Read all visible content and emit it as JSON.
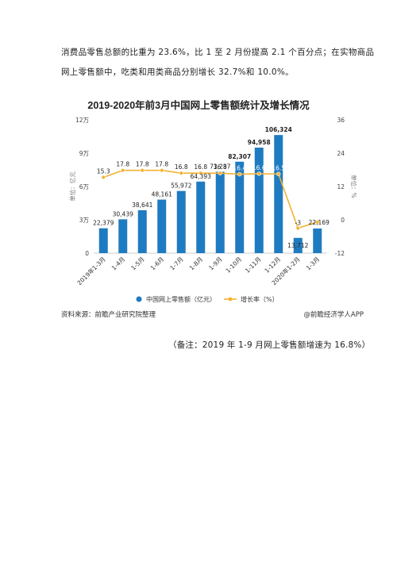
{
  "document": {
    "paragraph_line1": "消费品零售总额的比重为 23.6%，比 1 至 2 月份提高 2.1 个百分点；在实物商品",
    "paragraph_line2": "网上零售额中，吃类和用类商品分别增长 32.7%和 10.0%。",
    "source_left": "资料来源：前瞻产业研究院整理",
    "source_right": "@前瞻经济学人APP",
    "note": "（备注：2019 年 1-9 月网上零售额增速为 16.8%）"
  },
  "chart_data": {
    "type": "bar",
    "title": "2019-2020年前3月中国网上零售额统计及增长情况",
    "categories": [
      "2019年1-3月",
      "1-4月",
      "1-5月",
      "1-6月",
      "1-7月",
      "1-8月",
      "1-9月",
      "1-10月",
      "1-11月",
      "1-12月",
      "2020年1-2月",
      "1-3月"
    ],
    "bar_series": {
      "name": "中国网上零售额（亿元）",
      "color": "#1f7bc1",
      "values": [
        22379,
        30439,
        38641,
        48161,
        55972,
        64393,
        73237,
        82307,
        94958,
        106324,
        13712,
        22169
      ],
      "labels": [
        "22,379",
        "30,439",
        "38,641",
        "48,161",
        "55,972",
        "64,393",
        "73,237",
        "82,307",
        "94,958",
        "106,324",
        "13,712",
        "22,169"
      ]
    },
    "line_series": {
      "name": "增长率（%）",
      "color": "#f2b233",
      "values": [
        15.3,
        17.8,
        17.8,
        17.8,
        16.8,
        16.8,
        16.8,
        16.4,
        16.6,
        16.5,
        -3,
        -0.8
      ],
      "labels": [
        "15.3",
        "17.8",
        "17.8",
        "17.8",
        "16.8",
        "16.8",
        "16.8",
        "16.4",
        "16.6",
        "16.5",
        "-3",
        ""
      ]
    },
    "y_left": {
      "label": "单位：亿元",
      "ticks": [
        0,
        30000,
        60000,
        90000,
        120000
      ],
      "tick_labels": [
        "0",
        "3万",
        "6万",
        "9万",
        "12万"
      ],
      "range": [
        0,
        120000
      ]
    },
    "y_right": {
      "label": "单位：%",
      "ticks": [
        -12,
        0,
        12,
        24,
        36
      ],
      "tick_labels": [
        "-12",
        "0",
        "12",
        "24",
        "36"
      ],
      "range": [
        -12,
        36
      ]
    },
    "grid": false,
    "legend_position": "bottom"
  }
}
